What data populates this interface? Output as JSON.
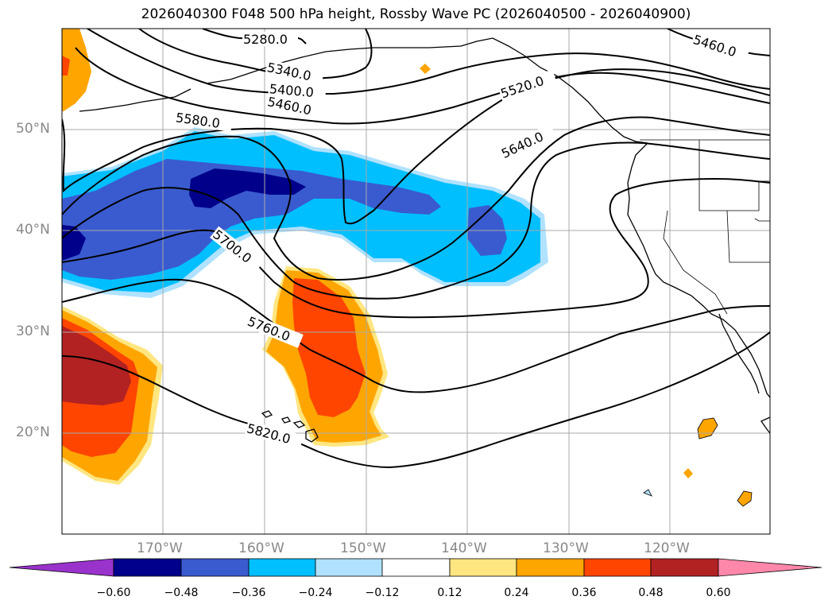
{
  "title": "2026040300 F048 500 hPa height, Rossby Wave PC (2026040500 - 2026040900)",
  "map": {
    "lat_labels": [
      "50°N",
      "40°N",
      "30°N",
      "20°N"
    ],
    "lon_labels": [
      "170°W",
      "160°W",
      "150°W",
      "140°W",
      "130°W",
      "120°W"
    ],
    "contour_labels": [
      "5280.0",
      "5340.0",
      "5400.0",
      "5460.0",
      "5460.0",
      "5520.0",
      "5580.0",
      "5640.0",
      "5700.0",
      "5760.0",
      "5820.0"
    ]
  },
  "colorbar": {
    "ticks": [
      "−0.60",
      "−0.48",
      "−0.36",
      "−0.24",
      "−0.12",
      "0.12",
      "0.24",
      "0.36",
      "0.48",
      "0.60"
    ],
    "colors": {
      "neg_extend": "#9933cc",
      "n060": "#00008b",
      "n048": "#3a5bcf",
      "n036": "#00bfff",
      "n024": "#b0e2ff",
      "neutral": "#ffffff",
      "p012": "#ffe680",
      "p024": "#ffa500",
      "p036": "#ff4500",
      "p048": "#b22222",
      "pos_extend": "#ff88aa"
    }
  }
}
